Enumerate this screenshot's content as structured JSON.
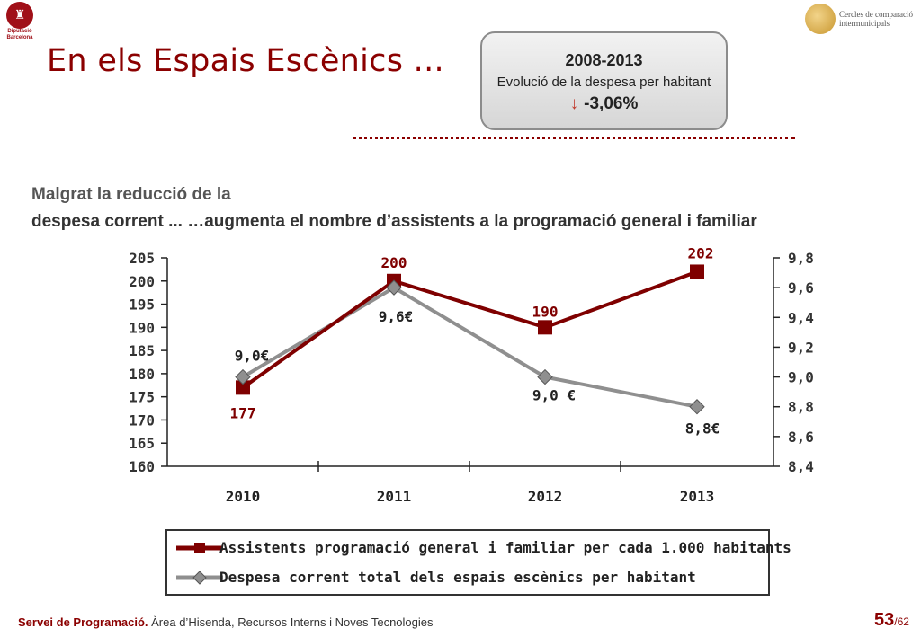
{
  "header": {
    "logo_text": "Diputació Barcelona",
    "title": "En els Espais Escènics ...",
    "brand_right": "Cercles de comparació intermunicipals"
  },
  "kpi": {
    "years": "2008-2013",
    "description": "Evolució de la despesa per habitant",
    "arrow": "↓",
    "value": "-3,06%"
  },
  "subtitle": {
    "line1": "Malgrat la reducció de la",
    "line2_prefix": "despesa corrent ...",
    "line2_emph": "…augmenta el nombre d’assistents a la programació general i familiar"
  },
  "colors": {
    "series1": "#7f0000",
    "series2": "#8f8f8f",
    "accent": "#8b0000"
  },
  "chart_data": {
    "type": "line",
    "x": [
      "2010",
      "2011",
      "2012",
      "2013"
    ],
    "y_left": {
      "ticks": [
        "205",
        "200",
        "195",
        "190",
        "185",
        "180",
        "175",
        "170",
        "165",
        "160"
      ],
      "lim": [
        160,
        205
      ]
    },
    "y_right": {
      "ticks": [
        "9,8",
        "9,6",
        "9,4",
        "9,2",
        "9,0",
        "8,8",
        "8,6",
        "8,4"
      ],
      "lim": [
        8.4,
        9.8
      ]
    },
    "series": [
      {
        "name": "Assistents programació general i familiar per cada 1.000 habitants",
        "axis": "left",
        "values": [
          177,
          200,
          190,
          202
        ],
        "labels": [
          "177",
          "200",
          "190",
          "202"
        ]
      },
      {
        "name": "Despesa corrent total dels espais escènics per habitant",
        "axis": "right",
        "values": [
          9.0,
          9.6,
          9.0,
          8.8
        ],
        "labels": [
          "9,0€",
          "9,6€",
          "9,0 €",
          "8,8€"
        ]
      }
    ]
  },
  "footer": {
    "dept": "Servei de Programació.",
    "rest": " Àrea d’Hisenda, Recursos Interns i Noves Tecnologies",
    "page": "53",
    "total": "/62"
  }
}
